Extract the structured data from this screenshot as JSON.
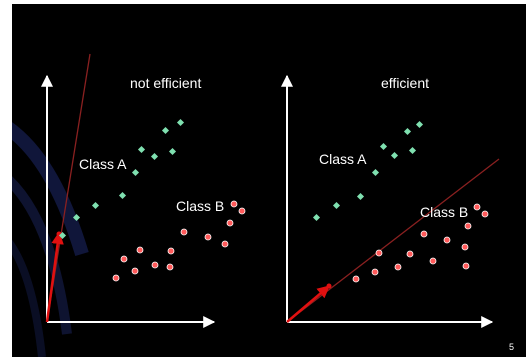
{
  "slide": {
    "page_number": "5",
    "title_fragment": "",
    "colors": {
      "background": "#000000",
      "axis": "#ffffff",
      "class_a": "#7fe0b0",
      "class_b": "#ff5a5a",
      "separator_line": "#8a2020",
      "normal_vector": "#e01010",
      "text": "#ffffff"
    }
  },
  "left_panel": {
    "heading": "not efficient",
    "class_a_label": "Class A",
    "class_b_label": "Class B",
    "class_a_count": 10,
    "class_b_count": 13
  },
  "right_panel": {
    "heading": "efficient",
    "class_a_label": "Class A",
    "class_b_label": "Class B",
    "class_a_count": 9,
    "class_b_count": 13
  }
}
